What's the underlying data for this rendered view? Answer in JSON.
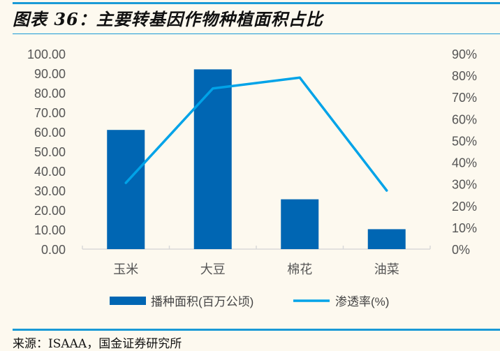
{
  "header": {
    "title": "图表 36：主要转基因作物种植面积占比"
  },
  "footer": {
    "source": "来源：ISAAA，国金证券研究所"
  },
  "colors": {
    "bar": "#0066b3",
    "line": "#00a3e8",
    "rule": "#1a9ad6",
    "background": "#fdf9ef"
  },
  "chart_data": {
    "type": "bar+line",
    "title": "主要转基因作物种植面积占比",
    "categories": [
      "玉米",
      "大豆",
      "棉花",
      "油菜"
    ],
    "series": [
      {
        "name": "播种面积(百万公顷)",
        "type": "bar",
        "axis": "left",
        "values": [
          61.0,
          92.0,
          25.5,
          10.2
        ]
      },
      {
        "name": "渗透率(%)",
        "type": "line",
        "axis": "right",
        "values": [
          30.5,
          74.0,
          79.0,
          27.0
        ]
      }
    ],
    "left_axis": {
      "ylim": [
        0,
        100
      ],
      "ticks": [
        "0.00",
        "10.00",
        "20.00",
        "30.00",
        "40.00",
        "50.00",
        "60.00",
        "70.00",
        "80.00",
        "90.00",
        "100.00"
      ]
    },
    "right_axis": {
      "ylim": [
        0,
        90
      ],
      "ticks": [
        "0%",
        "10%",
        "20%",
        "30%",
        "40%",
        "50%",
        "60%",
        "70%",
        "80%",
        "90%"
      ]
    },
    "xlabel": "",
    "ylabel": "",
    "grid": false,
    "legend_position": "bottom"
  }
}
